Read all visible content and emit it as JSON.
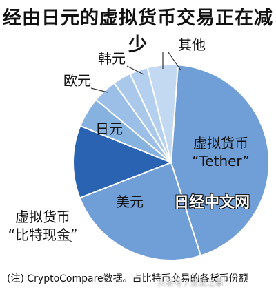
{
  "chart_data": {
    "type": "pie",
    "title": "经由日元的虚拟货币交易正在减少",
    "slices": [
      {
        "label": "虚拟货币\n“Tether”",
        "value": 44,
        "color": "#6f9fd6"
      },
      {
        "label": "美元",
        "value": 24,
        "color": "#6f9fd6"
      },
      {
        "label": "虚拟货币\n“比特现金”",
        "value": 0,
        "color": "#6f9fd6"
      },
      {
        "label": "日元",
        "value": 12,
        "color": "#2a63b2"
      },
      {
        "label": "欧元",
        "value": 5,
        "color": "#86b2e0"
      },
      {
        "label": "",
        "value": 4,
        "color": "#9bbfe6"
      },
      {
        "label": "韩元",
        "value": 3,
        "color": "#a9c8ea"
      },
      {
        "label": "",
        "value": 3,
        "color": "#b5d0ee"
      },
      {
        "label": "其他",
        "value": 5,
        "color": "#c3d9f2"
      }
    ]
  },
  "note": "(注) CryptoCompare数据。占比特币交易的各货币份额",
  "watermark": "日经中文网",
  "watermark_small": "头条号 / 亚亚之事"
}
